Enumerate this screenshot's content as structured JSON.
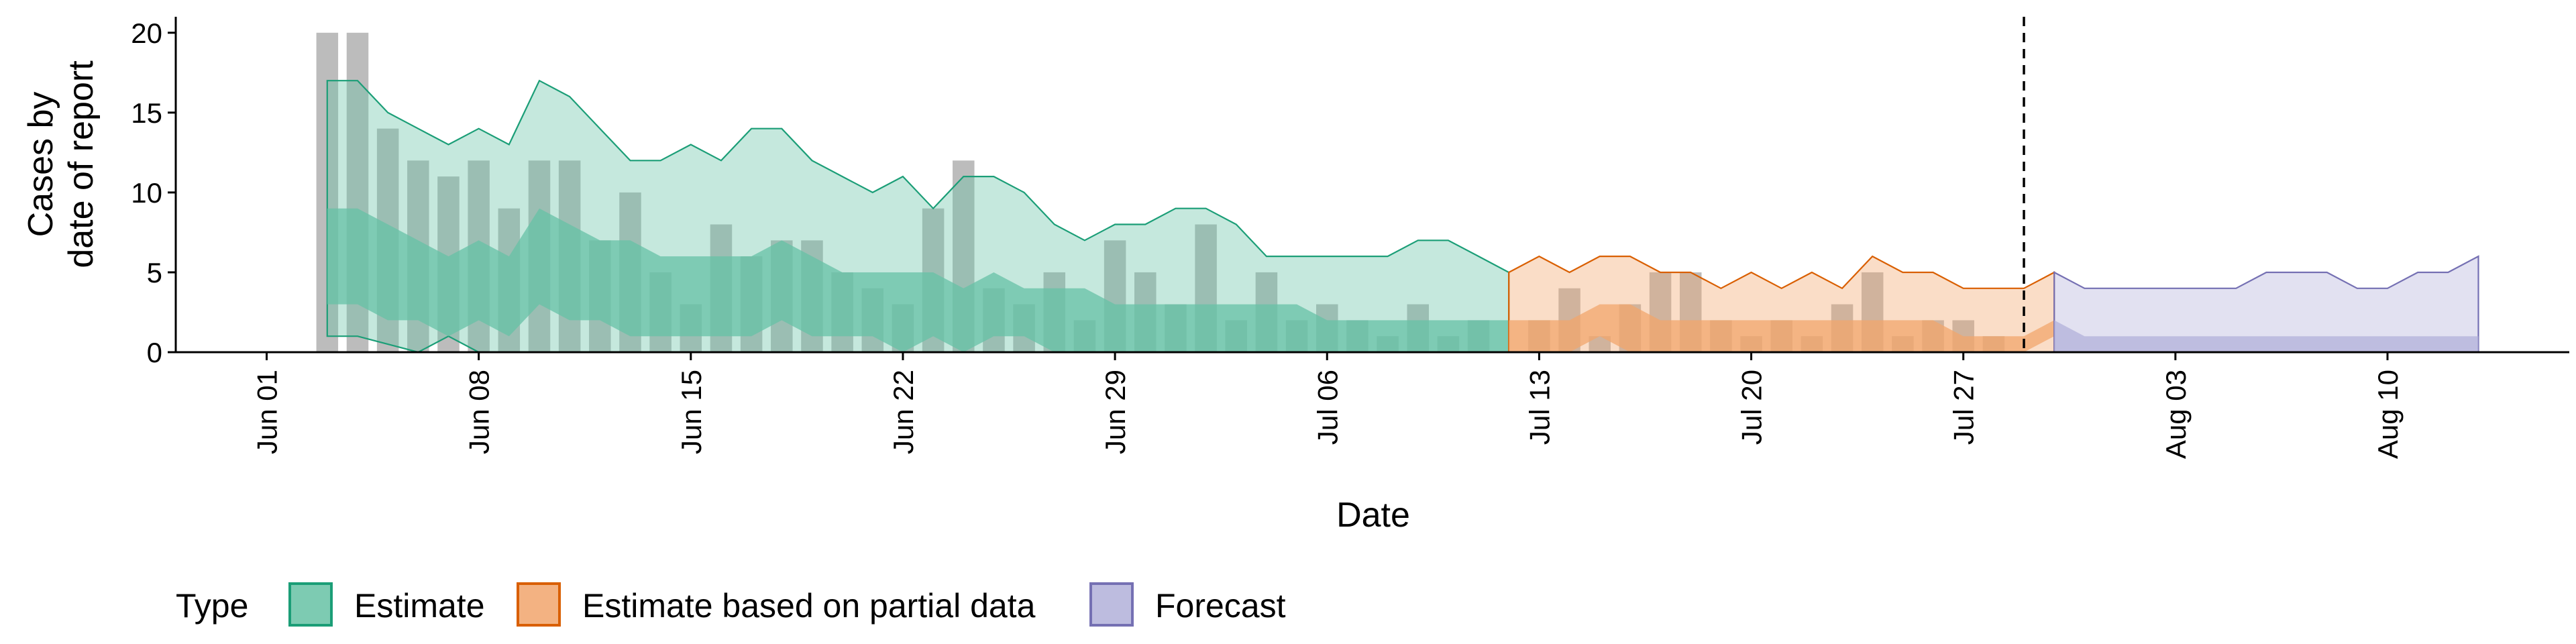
{
  "chart_data": {
    "type": "area",
    "title": "",
    "xlabel": "Date",
    "ylabel_lines": [
      "Cases by",
      "date of report"
    ],
    "ylim": [
      0,
      21
    ],
    "yticks": [
      0,
      5,
      10,
      15,
      20
    ],
    "xlim": [
      "2025-05-29",
      "2025-08-16"
    ],
    "xticks": [
      {
        "date": "2025-06-01",
        "label": "Jun 01"
      },
      {
        "date": "2025-06-08",
        "label": "Jun 08"
      },
      {
        "date": "2025-06-15",
        "label": "Jun 15"
      },
      {
        "date": "2025-06-22",
        "label": "Jun 22"
      },
      {
        "date": "2025-06-29",
        "label": "Jun 29"
      },
      {
        "date": "2025-07-06",
        "label": "Jul 06"
      },
      {
        "date": "2025-07-13",
        "label": "Jul 13"
      },
      {
        "date": "2025-07-20",
        "label": "Jul 20"
      },
      {
        "date": "2025-07-27",
        "label": "Jul 27"
      },
      {
        "date": "2025-08-03",
        "label": "Aug 03"
      },
      {
        "date": "2025-08-10",
        "label": "Aug 10"
      }
    ],
    "vline_date": "2025-07-29",
    "observed": {
      "start_date": "2025-06-03",
      "color": "#b0b0b0",
      "values": [
        20,
        20,
        14,
        12,
        11,
        12,
        9,
        12,
        12,
        7,
        10,
        5,
        3,
        8,
        6,
        7,
        7,
        5,
        4,
        3,
        9,
        12,
        4,
        3,
        5,
        2,
        7,
        5,
        3,
        8,
        2,
        5,
        2,
        3,
        2,
        1,
        3,
        1,
        2,
        0,
        2,
        4,
        1,
        3,
        5,
        5,
        2,
        1,
        2,
        1,
        3,
        5,
        1,
        2,
        2,
        1
      ]
    },
    "series": [
      {
        "name": "Estimate",
        "color": "#1b9e77",
        "fill": "#66c2a5",
        "start_date": "2025-06-03",
        "outer_upper": [
          17,
          17,
          15,
          14,
          13,
          14,
          13,
          17,
          16,
          14,
          12,
          12,
          13,
          12,
          14,
          14,
          12,
          11,
          10,
          11,
          9,
          11,
          11,
          10,
          8,
          7,
          8,
          8,
          9,
          9,
          8,
          6,
          6,
          6,
          6,
          6,
          7,
          7,
          6,
          5
        ],
        "outer_lower": [
          1,
          1,
          0.5,
          0,
          1,
          0,
          0,
          0,
          0,
          0,
          0,
          0,
          0,
          0,
          0,
          0,
          0,
          0,
          0,
          0,
          0,
          0,
          0,
          0,
          0,
          0,
          0,
          0,
          0,
          0,
          0,
          0,
          0,
          0,
          0,
          0,
          0,
          0,
          0,
          0
        ],
        "inner_upper": [
          9,
          9,
          8,
          7,
          6,
          7,
          6,
          9,
          8,
          7,
          7,
          6,
          6,
          6,
          6,
          7,
          6,
          5,
          5,
          5,
          5,
          4,
          5,
          4,
          4,
          4,
          3,
          3,
          3,
          3,
          3,
          3,
          3,
          2,
          2,
          2,
          2,
          2,
          2,
          2
        ],
        "inner_lower": [
          3,
          3,
          2,
          2,
          1,
          2,
          1,
          3,
          2,
          2,
          1,
          1,
          1,
          1,
          1,
          2,
          1,
          1,
          1,
          0,
          1,
          0,
          1,
          1,
          0,
          0,
          0,
          0,
          0,
          0,
          0,
          0,
          0,
          0,
          0,
          0,
          0,
          0,
          0,
          0
        ]
      },
      {
        "name": "Estimate based on partial data",
        "color": "#d95f02",
        "fill": "#f1a56c",
        "start_date": "2025-07-12",
        "outer_upper": [
          5,
          6,
          5,
          6,
          6,
          5,
          5,
          4,
          5,
          4,
          5,
          4,
          6,
          5,
          5,
          4,
          4,
          4,
          5
        ],
        "outer_lower": [
          0,
          0,
          0,
          0,
          0,
          0,
          0,
          0,
          0,
          0,
          0,
          0,
          0,
          0,
          0,
          0,
          0,
          0,
          0
        ],
        "inner_upper": [
          2,
          2,
          2,
          3,
          3,
          2,
          2,
          2,
          2,
          2,
          2,
          2,
          2,
          2,
          2,
          1,
          1,
          1,
          2
        ],
        "inner_lower": [
          0,
          0,
          0,
          1,
          0,
          0,
          0,
          0,
          0,
          0,
          0,
          0,
          0,
          0,
          0,
          0,
          0,
          0,
          1
        ]
      },
      {
        "name": "Forecast",
        "color": "#7570b3",
        "fill": "#b2b0d9",
        "start_date": "2025-07-30",
        "outer_upper": [
          5,
          4,
          4,
          4,
          4,
          4,
          4,
          5,
          5,
          5,
          4,
          4,
          5,
          5,
          6
        ],
        "outer_lower": [
          0,
          0,
          0,
          0,
          0,
          0,
          0,
          0,
          0,
          0,
          0,
          0,
          0,
          0,
          0
        ],
        "inner_upper": [
          2,
          1,
          1,
          1,
          1,
          1,
          1,
          1,
          1,
          1,
          1,
          1,
          1,
          1,
          1
        ],
        "inner_lower": [
          0,
          0,
          0,
          0,
          0,
          0,
          0,
          0,
          0,
          0,
          0,
          0,
          0,
          0,
          0
        ]
      }
    ],
    "legend": {
      "position": "bottom-left",
      "title": "Type",
      "entries": [
        "Estimate",
        "Estimate based on partial data",
        "Forecast"
      ]
    },
    "grid": false
  }
}
